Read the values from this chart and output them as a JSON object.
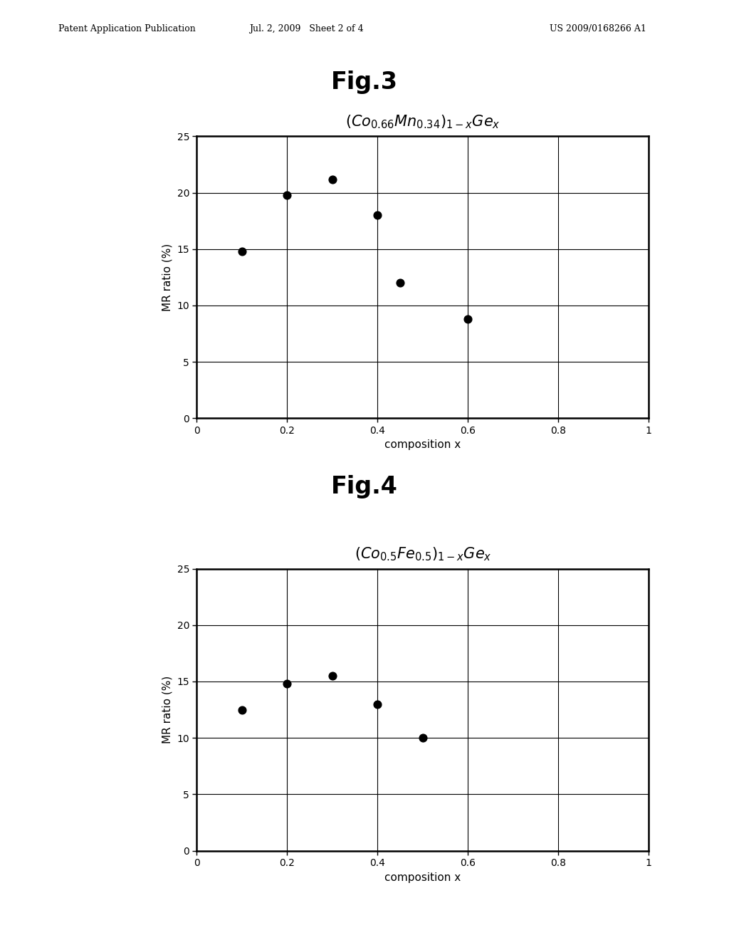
{
  "fig3": {
    "title_fig": "Fig.3",
    "chart_title": "$(Co_{0.66}Mn_{0.34})_{1-x}Ge_x$",
    "xlabel": "composition x",
    "ylabel": "MR ratio (%)",
    "xlim": [
      0,
      1
    ],
    "ylim": [
      0,
      25
    ],
    "xticks": [
      0,
      0.2,
      0.4,
      0.6,
      0.8,
      1
    ],
    "yticks": [
      0,
      5,
      10,
      15,
      20,
      25
    ],
    "x_data": [
      0.1,
      0.2,
      0.3,
      0.4,
      0.45,
      0.6
    ],
    "y_data": [
      14.8,
      19.8,
      21.2,
      18.0,
      12.0,
      8.8
    ],
    "point_color": "#000000",
    "point_size": 60
  },
  "fig4": {
    "title_fig": "Fig.4",
    "chart_title": "$(Co_{0.5}Fe_{0.5})_{1-x}Ge_x$",
    "xlabel": "composition x",
    "ylabel": "MR ratio (%)",
    "xlim": [
      0,
      1
    ],
    "ylim": [
      0,
      25
    ],
    "xticks": [
      0,
      0.2,
      0.4,
      0.6,
      0.8,
      1
    ],
    "yticks": [
      0,
      5,
      10,
      15,
      20,
      25
    ],
    "x_data": [
      0.1,
      0.2,
      0.3,
      0.4,
      0.5
    ],
    "y_data": [
      12.5,
      14.8,
      15.5,
      13.0,
      10.0
    ],
    "point_color": "#000000",
    "point_size": 60
  },
  "header_left": "Patent Application Publication",
  "header_mid": "Jul. 2, 2009   Sheet 2 of 4",
  "header_right": "US 2009/0168266 A1",
  "bg_color": "#ffffff",
  "text_color": "#000000",
  "fig_title_fontsize": 24,
  "chart_title_fontsize": 15,
  "axis_label_fontsize": 11,
  "tick_fontsize": 10,
  "header_fontsize": 9
}
